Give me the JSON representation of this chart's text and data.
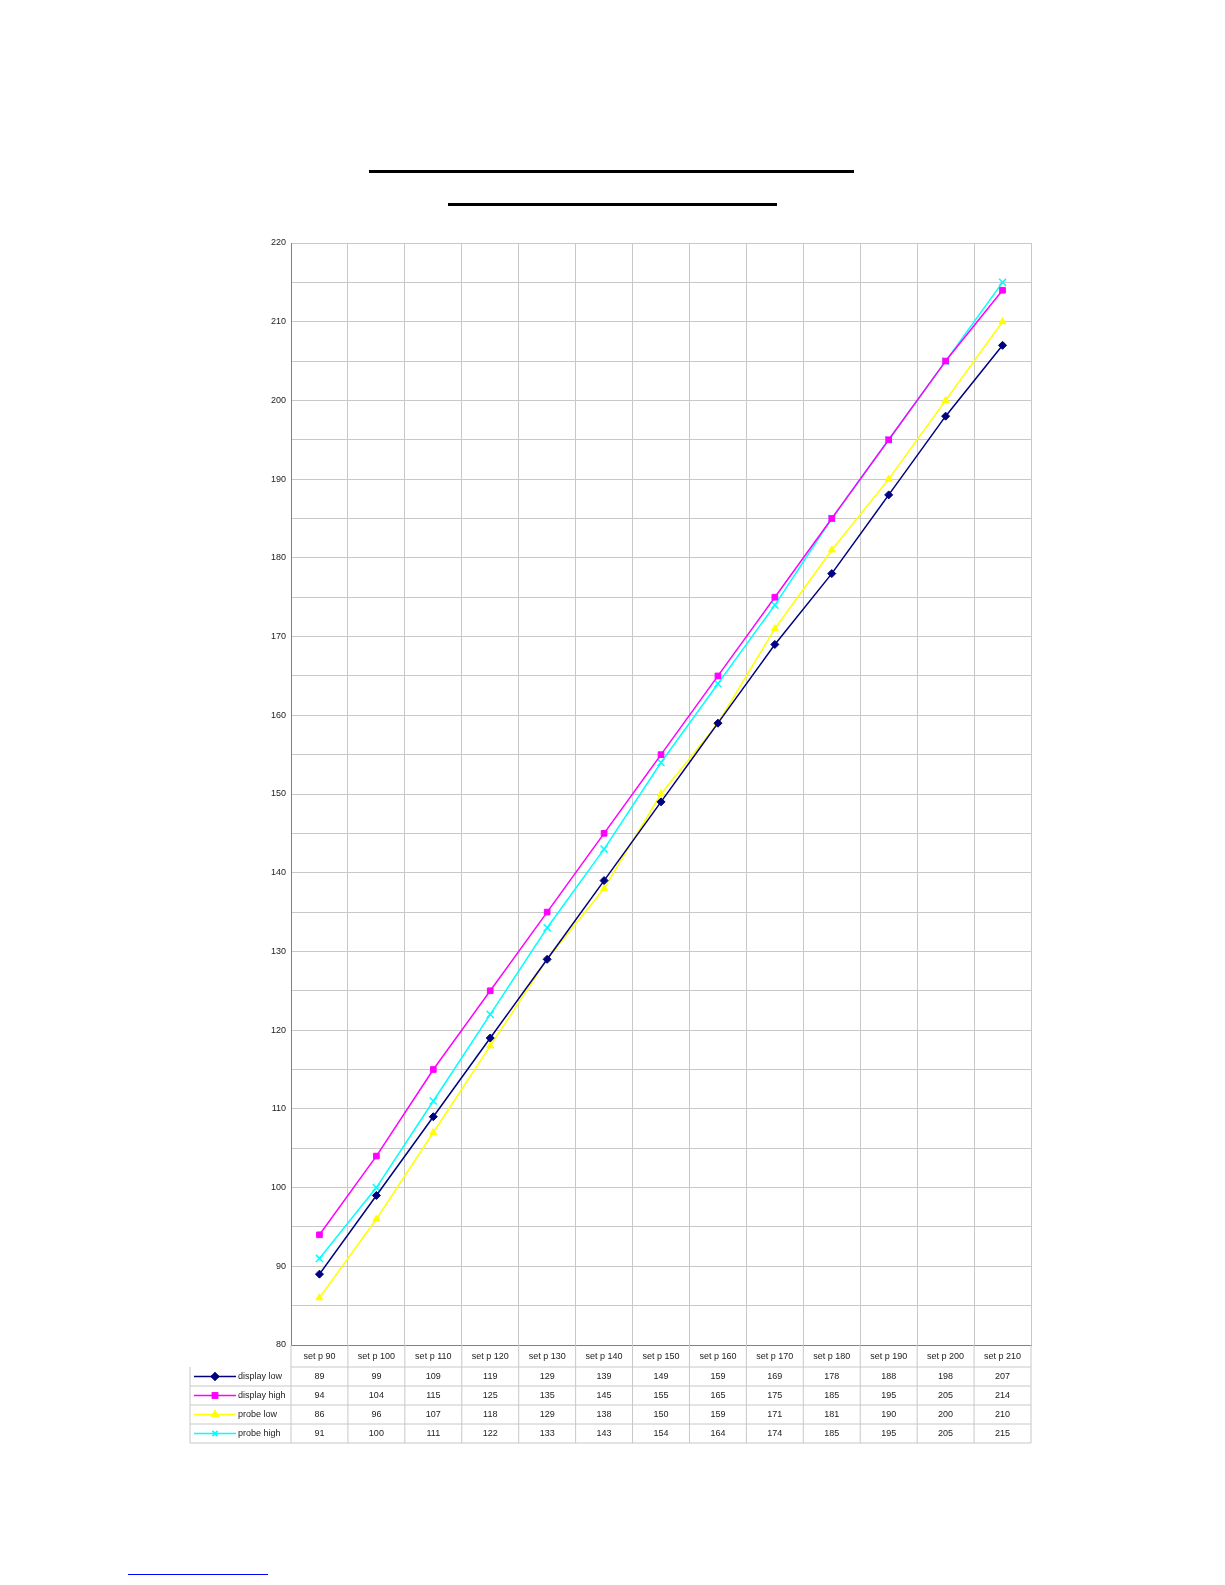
{
  "chart_data": {
    "type": "line",
    "categories": [
      "set p 90",
      "set p 100",
      "set p 110",
      "set p 120",
      "set p 130",
      "set p 140",
      "set p 150",
      "set p 160",
      "set p 170",
      "set p 180",
      "set p 190",
      "set p 200",
      "set p 210"
    ],
    "series": [
      {
        "name": "display low",
        "color": "#000080",
        "marker": "diamond",
        "values": [
          89,
          99,
          109,
          119,
          129,
          139,
          149,
          159,
          169,
          178,
          188,
          198,
          207
        ]
      },
      {
        "name": "display high",
        "color": "#ff00ff",
        "marker": "square",
        "values": [
          94,
          104,
          115,
          125,
          135,
          145,
          155,
          165,
          175,
          185,
          195,
          205,
          214
        ]
      },
      {
        "name": "probe low",
        "color": "#ffff00",
        "marker": "triangle",
        "values": [
          86,
          96,
          107,
          118,
          129,
          138,
          150,
          159,
          171,
          181,
          190,
          200,
          210
        ]
      },
      {
        "name": "probe high",
        "color": "#00ffff",
        "marker": "cross",
        "values": [
          91,
          100,
          111,
          122,
          133,
          143,
          154,
          164,
          174,
          185,
          195,
          205,
          215
        ]
      }
    ],
    "ylim": [
      80,
      220
    ],
    "yticks": [
      80,
      {
        "value": 85,
        "label": null
      },
      90,
      {
        "value": 95,
        "label": null
      },
      100,
      {
        "value": 105,
        "label": null
      },
      110,
      {
        "value": 115,
        "label": null
      },
      120,
      {
        "value": 125,
        "label": null
      },
      130,
      {
        "value": 135,
        "label": null
      },
      140,
      {
        "value": 145,
        "label": null
      },
      150,
      {
        "value": 155,
        "label": null
      },
      160,
      {
        "value": 165,
        "label": null
      },
      170,
      {
        "value": 175,
        "label": null
      },
      180,
      {
        "value": 185,
        "label": null
      },
      190,
      {
        "value": 195,
        "label": null
      },
      200,
      {
        "value": 205,
        "label": null
      },
      210,
      {
        "value": 215,
        "label": null
      },
      220
    ],
    "grid": true,
    "legend": "bottom left",
    "data_labels": true
  }
}
